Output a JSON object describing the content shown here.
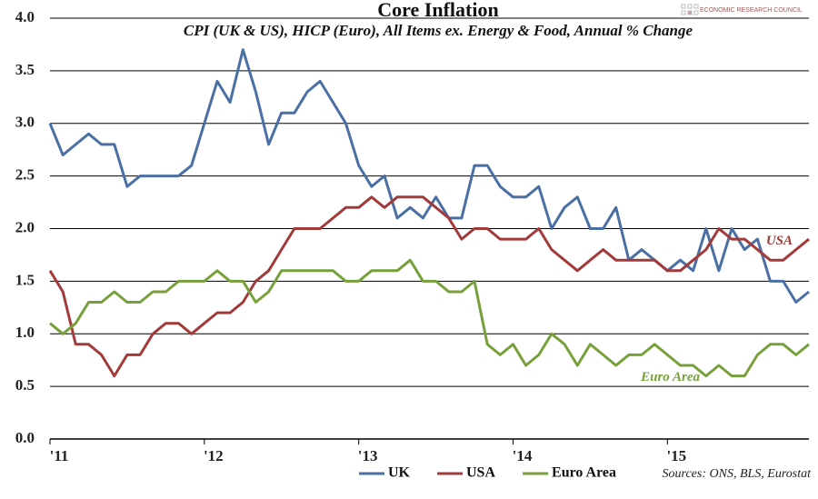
{
  "chart_data": {
    "type": "line",
    "title": "Core Inflation",
    "subtitle": "CPI (UK & US), HICP (Euro), All Items ex. Energy & Food, Annual % Change",
    "brand": "ECONOMIC RESEARCH COUNCIL",
    "source": "Sources: ONS, BLS, Eurostat",
    "annotations": [
      "USA",
      "Euro Area"
    ],
    "categories": [
      "'11",
      null,
      null,
      null,
      null,
      null,
      null,
      null,
      null,
      null,
      null,
      null,
      "'12",
      null,
      null,
      null,
      null,
      null,
      null,
      null,
      null,
      null,
      null,
      null,
      "'13",
      null,
      null,
      null,
      null,
      null,
      null,
      null,
      null,
      null,
      null,
      null,
      "'14",
      null,
      null,
      null,
      null,
      null,
      null,
      null,
      null,
      null,
      null,
      null,
      "'15",
      null,
      null,
      null,
      null,
      null,
      null,
      null,
      null,
      null,
      null,
      null
    ],
    "series": [
      {
        "name": "UK",
        "color": "#4a6fa5",
        "values": [
          3.0,
          2.7,
          2.8,
          2.9,
          2.8,
          2.8,
          2.4,
          2.5,
          2.5,
          2.5,
          2.5,
          2.6,
          3.0,
          3.4,
          3.2,
          3.7,
          3.3,
          2.8,
          3.1,
          3.1,
          3.3,
          3.4,
          3.2,
          3.0,
          2.6,
          2.4,
          2.5,
          2.1,
          2.2,
          2.1,
          2.3,
          2.1,
          2.1,
          2.6,
          2.6,
          2.4,
          2.3,
          2.3,
          2.4,
          2.0,
          2.2,
          2.3,
          2.0,
          2.0,
          2.2,
          1.7,
          1.8,
          1.7,
          1.6,
          1.7,
          1.6,
          2.0,
          1.6,
          2.0,
          1.8,
          1.9,
          1.5,
          1.5,
          1.3,
          1.4
        ]
      },
      {
        "name": "USA",
        "color": "#a33a3a",
        "values": [
          1.6,
          1.4,
          0.9,
          0.9,
          0.8,
          0.6,
          0.8,
          0.8,
          1.0,
          1.1,
          1.1,
          1.0,
          1.1,
          1.2,
          1.2,
          1.3,
          1.5,
          1.6,
          1.8,
          2.0,
          2.0,
          2.0,
          2.1,
          2.2,
          2.2,
          2.3,
          2.2,
          2.3,
          2.3,
          2.3,
          2.2,
          2.1,
          1.9,
          2.0,
          2.0,
          1.9,
          1.9,
          1.9,
          2.0,
          1.8,
          1.7,
          1.6,
          1.7,
          1.8,
          1.7,
          1.7,
          1.7,
          1.7,
          1.6,
          1.6,
          1.7,
          1.8,
          2.0,
          1.9,
          1.9,
          1.8,
          1.7,
          1.7,
          1.8,
          1.9
        ]
      },
      {
        "name": "Euro Area",
        "color": "#77a03b",
        "values": [
          1.1,
          1.0,
          1.1,
          1.3,
          1.3,
          1.4,
          1.3,
          1.3,
          1.4,
          1.4,
          1.5,
          1.5,
          1.5,
          1.6,
          1.5,
          1.5,
          1.3,
          1.4,
          1.6,
          1.6,
          1.6,
          1.6,
          1.6,
          1.5,
          1.5,
          1.6,
          1.6,
          1.6,
          1.7,
          1.5,
          1.5,
          1.4,
          1.4,
          1.5,
          0.9,
          0.8,
          0.9,
          0.7,
          0.8,
          1.0,
          0.9,
          0.7,
          0.9,
          0.8,
          0.7,
          0.8,
          0.8,
          0.9,
          0.8,
          0.7,
          0.7,
          0.6,
          0.7,
          0.6,
          0.6,
          0.8,
          0.9,
          0.9,
          0.8,
          0.9
        ]
      }
    ],
    "ylim": [
      0,
      4
    ],
    "yticks": [
      {
        "value": 0,
        "label": "0.0"
      },
      0.5,
      {
        "value": 1,
        "label": "1.0"
      },
      1.5,
      {
        "value": 2,
        "label": "2.0"
      },
      2.5,
      {
        "value": 3,
        "label": "3.0"
      },
      3.5,
      {
        "value": 4,
        "label": "4.0"
      }
    ],
    "grid": true
  }
}
